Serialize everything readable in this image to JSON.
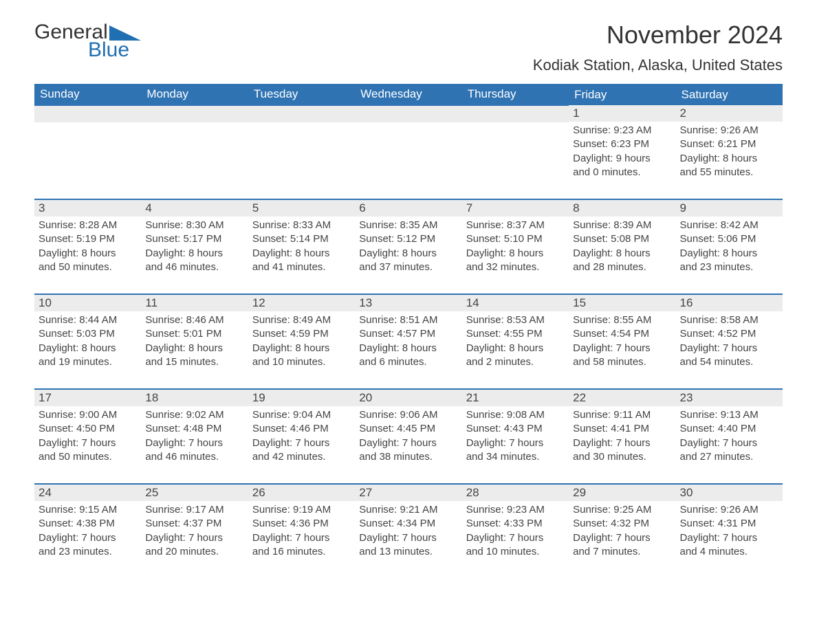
{
  "logo": {
    "text1": "General",
    "text2": "Blue",
    "color_text": "#333333",
    "color_blue": "#1f6fb2"
  },
  "title": "November 2024",
  "location": "Kodiak Station, Alaska, United States",
  "colors": {
    "header_bg": "#2f73b3",
    "header_text": "#ffffff",
    "daynum_bg": "#ececec",
    "row_border": "#2f73b3",
    "body_text": "#444444"
  },
  "weekdays": [
    "Sunday",
    "Monday",
    "Tuesday",
    "Wednesday",
    "Thursday",
    "Friday",
    "Saturday"
  ],
  "weeks": [
    [
      null,
      null,
      null,
      null,
      null,
      {
        "n": "1",
        "sr": "Sunrise: 9:23 AM",
        "ss": "Sunset: 6:23 PM",
        "d1": "Daylight: 9 hours",
        "d2": "and 0 minutes."
      },
      {
        "n": "2",
        "sr": "Sunrise: 9:26 AM",
        "ss": "Sunset: 6:21 PM",
        "d1": "Daylight: 8 hours",
        "d2": "and 55 minutes."
      }
    ],
    [
      {
        "n": "3",
        "sr": "Sunrise: 8:28 AM",
        "ss": "Sunset: 5:19 PM",
        "d1": "Daylight: 8 hours",
        "d2": "and 50 minutes."
      },
      {
        "n": "4",
        "sr": "Sunrise: 8:30 AM",
        "ss": "Sunset: 5:17 PM",
        "d1": "Daylight: 8 hours",
        "d2": "and 46 minutes."
      },
      {
        "n": "5",
        "sr": "Sunrise: 8:33 AM",
        "ss": "Sunset: 5:14 PM",
        "d1": "Daylight: 8 hours",
        "d2": "and 41 minutes."
      },
      {
        "n": "6",
        "sr": "Sunrise: 8:35 AM",
        "ss": "Sunset: 5:12 PM",
        "d1": "Daylight: 8 hours",
        "d2": "and 37 minutes."
      },
      {
        "n": "7",
        "sr": "Sunrise: 8:37 AM",
        "ss": "Sunset: 5:10 PM",
        "d1": "Daylight: 8 hours",
        "d2": "and 32 minutes."
      },
      {
        "n": "8",
        "sr": "Sunrise: 8:39 AM",
        "ss": "Sunset: 5:08 PM",
        "d1": "Daylight: 8 hours",
        "d2": "and 28 minutes."
      },
      {
        "n": "9",
        "sr": "Sunrise: 8:42 AM",
        "ss": "Sunset: 5:06 PM",
        "d1": "Daylight: 8 hours",
        "d2": "and 23 minutes."
      }
    ],
    [
      {
        "n": "10",
        "sr": "Sunrise: 8:44 AM",
        "ss": "Sunset: 5:03 PM",
        "d1": "Daylight: 8 hours",
        "d2": "and 19 minutes."
      },
      {
        "n": "11",
        "sr": "Sunrise: 8:46 AM",
        "ss": "Sunset: 5:01 PM",
        "d1": "Daylight: 8 hours",
        "d2": "and 15 minutes."
      },
      {
        "n": "12",
        "sr": "Sunrise: 8:49 AM",
        "ss": "Sunset: 4:59 PM",
        "d1": "Daylight: 8 hours",
        "d2": "and 10 minutes."
      },
      {
        "n": "13",
        "sr": "Sunrise: 8:51 AM",
        "ss": "Sunset: 4:57 PM",
        "d1": "Daylight: 8 hours",
        "d2": "and 6 minutes."
      },
      {
        "n": "14",
        "sr": "Sunrise: 8:53 AM",
        "ss": "Sunset: 4:55 PM",
        "d1": "Daylight: 8 hours",
        "d2": "and 2 minutes."
      },
      {
        "n": "15",
        "sr": "Sunrise: 8:55 AM",
        "ss": "Sunset: 4:54 PM",
        "d1": "Daylight: 7 hours",
        "d2": "and 58 minutes."
      },
      {
        "n": "16",
        "sr": "Sunrise: 8:58 AM",
        "ss": "Sunset: 4:52 PM",
        "d1": "Daylight: 7 hours",
        "d2": "and 54 minutes."
      }
    ],
    [
      {
        "n": "17",
        "sr": "Sunrise: 9:00 AM",
        "ss": "Sunset: 4:50 PM",
        "d1": "Daylight: 7 hours",
        "d2": "and 50 minutes."
      },
      {
        "n": "18",
        "sr": "Sunrise: 9:02 AM",
        "ss": "Sunset: 4:48 PM",
        "d1": "Daylight: 7 hours",
        "d2": "and 46 minutes."
      },
      {
        "n": "19",
        "sr": "Sunrise: 9:04 AM",
        "ss": "Sunset: 4:46 PM",
        "d1": "Daylight: 7 hours",
        "d2": "and 42 minutes."
      },
      {
        "n": "20",
        "sr": "Sunrise: 9:06 AM",
        "ss": "Sunset: 4:45 PM",
        "d1": "Daylight: 7 hours",
        "d2": "and 38 minutes."
      },
      {
        "n": "21",
        "sr": "Sunrise: 9:08 AM",
        "ss": "Sunset: 4:43 PM",
        "d1": "Daylight: 7 hours",
        "d2": "and 34 minutes."
      },
      {
        "n": "22",
        "sr": "Sunrise: 9:11 AM",
        "ss": "Sunset: 4:41 PM",
        "d1": "Daylight: 7 hours",
        "d2": "and 30 minutes."
      },
      {
        "n": "23",
        "sr": "Sunrise: 9:13 AM",
        "ss": "Sunset: 4:40 PM",
        "d1": "Daylight: 7 hours",
        "d2": "and 27 minutes."
      }
    ],
    [
      {
        "n": "24",
        "sr": "Sunrise: 9:15 AM",
        "ss": "Sunset: 4:38 PM",
        "d1": "Daylight: 7 hours",
        "d2": "and 23 minutes."
      },
      {
        "n": "25",
        "sr": "Sunrise: 9:17 AM",
        "ss": "Sunset: 4:37 PM",
        "d1": "Daylight: 7 hours",
        "d2": "and 20 minutes."
      },
      {
        "n": "26",
        "sr": "Sunrise: 9:19 AM",
        "ss": "Sunset: 4:36 PM",
        "d1": "Daylight: 7 hours",
        "d2": "and 16 minutes."
      },
      {
        "n": "27",
        "sr": "Sunrise: 9:21 AM",
        "ss": "Sunset: 4:34 PM",
        "d1": "Daylight: 7 hours",
        "d2": "and 13 minutes."
      },
      {
        "n": "28",
        "sr": "Sunrise: 9:23 AM",
        "ss": "Sunset: 4:33 PM",
        "d1": "Daylight: 7 hours",
        "d2": "and 10 minutes."
      },
      {
        "n": "29",
        "sr": "Sunrise: 9:25 AM",
        "ss": "Sunset: 4:32 PM",
        "d1": "Daylight: 7 hours",
        "d2": "and 7 minutes."
      },
      {
        "n": "30",
        "sr": "Sunrise: 9:26 AM",
        "ss": "Sunset: 4:31 PM",
        "d1": "Daylight: 7 hours",
        "d2": "and 4 minutes."
      }
    ]
  ]
}
